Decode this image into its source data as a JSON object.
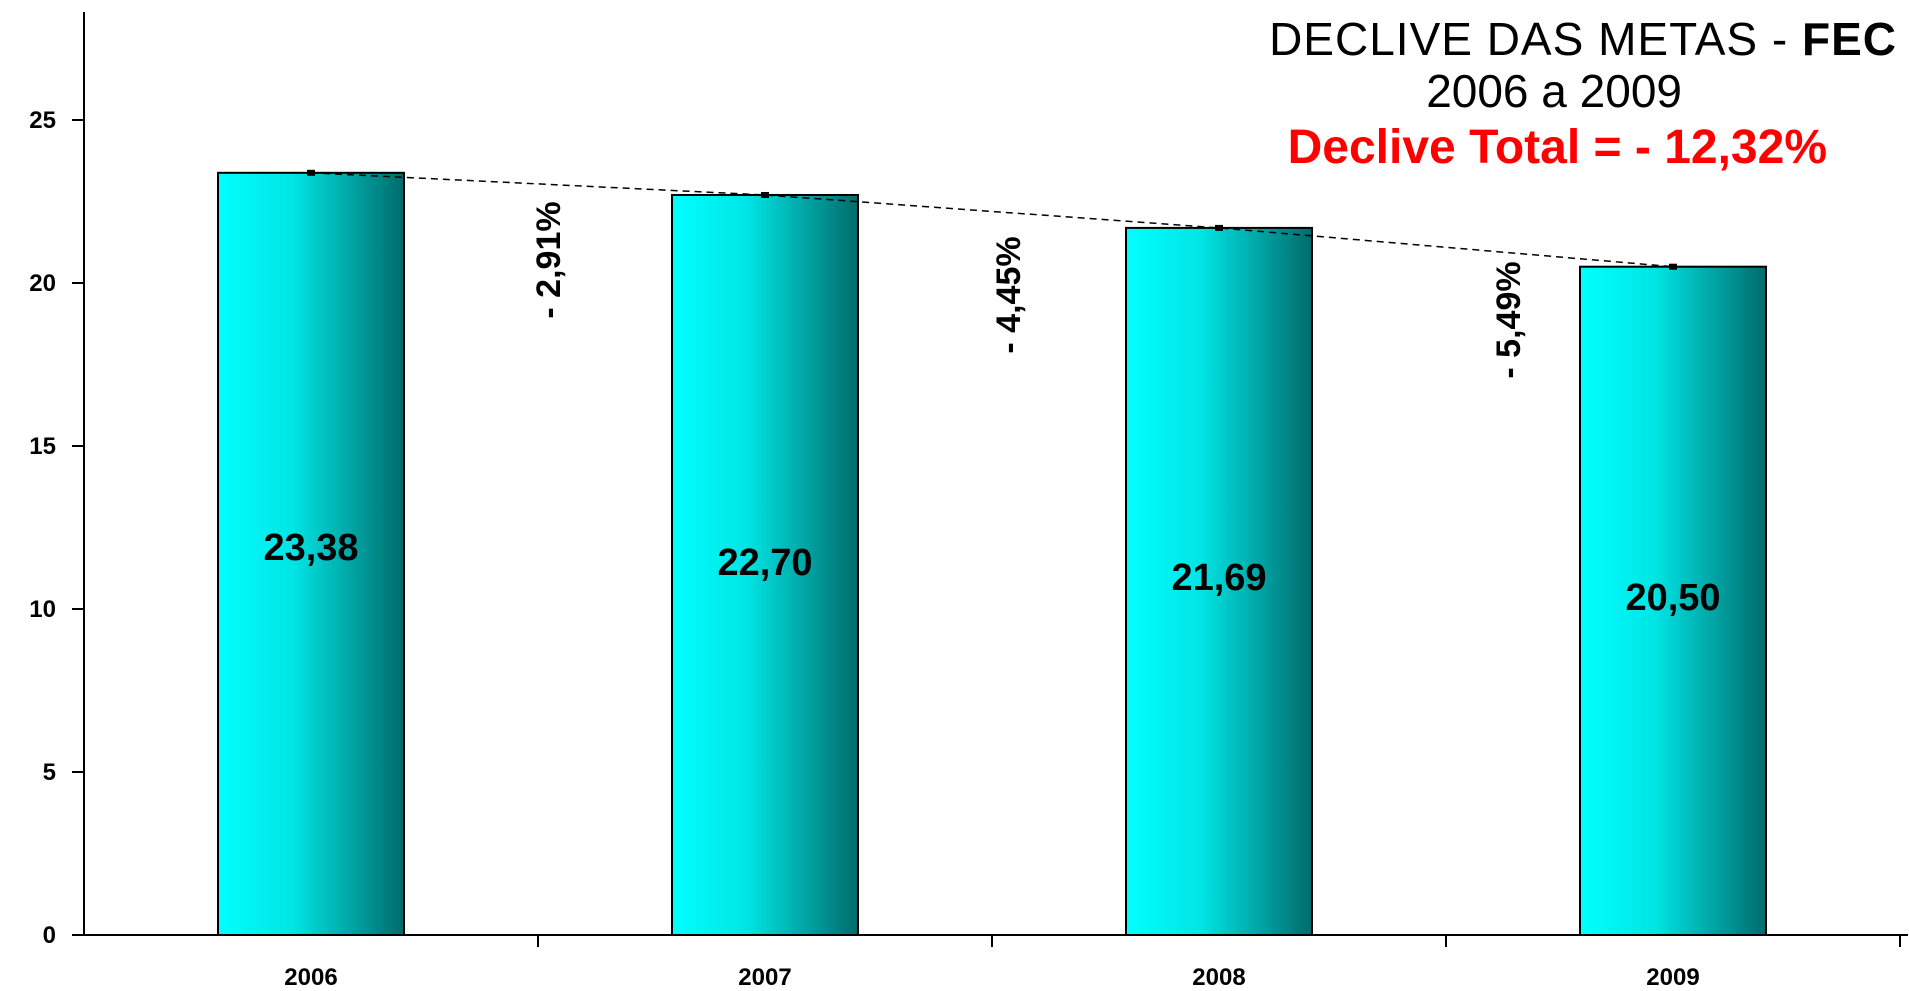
{
  "title": {
    "line1_main": "DECLIVE DAS METAS - ",
    "line1_bold": "FEC",
    "line2": "2006 a 2009",
    "line3": "Declive Total = - 12,32%"
  },
  "chart_data": {
    "type": "bar",
    "categories": [
      "2006",
      "2007",
      "2008",
      "2009"
    ],
    "values": [
      23.38,
      22.7,
      21.69,
      20.5
    ],
    "value_labels": [
      "23,38",
      "22,70",
      "21,69",
      "20,50"
    ],
    "yticks": [
      0,
      5,
      10,
      15,
      20,
      25
    ],
    "ylim": [
      0,
      28
    ],
    "grid": false,
    "legend": "none",
    "trendline": "dashed",
    "annotations": [
      "- 2,91%",
      "- 4,45%",
      "- 5,49%"
    ],
    "bar_color_light": "#00ffff",
    "bar_color_dark": "#006b6b"
  }
}
